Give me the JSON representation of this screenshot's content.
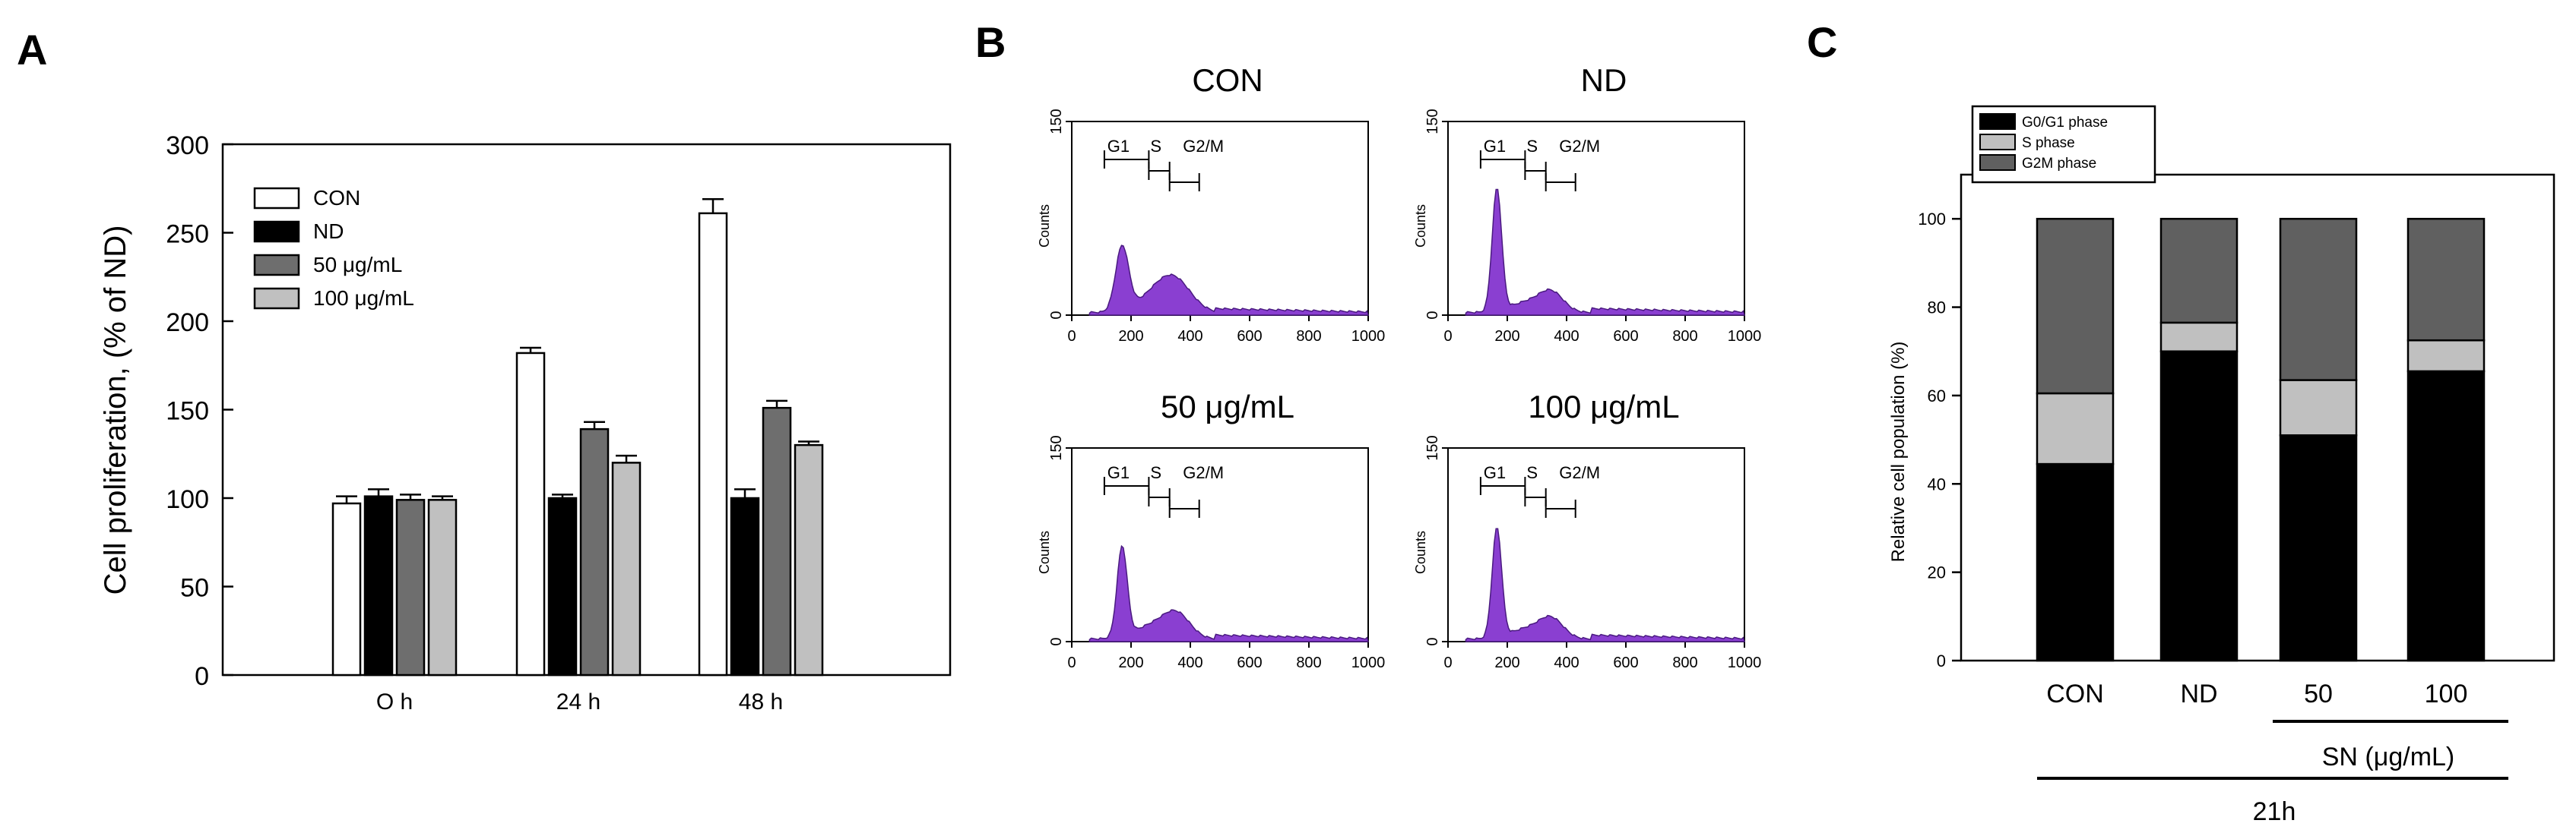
{
  "panel_letters": {
    "a": "A",
    "b": "B",
    "c": "C"
  },
  "chart_data": [
    {
      "id": "A",
      "type": "bar",
      "title": "",
      "xlabel": "",
      "ylabel": "Cell proliferation, (% of ND)",
      "ylim": [
        0,
        300
      ],
      "yticks": [
        0,
        50,
        100,
        150,
        200,
        250,
        300
      ],
      "categories": [
        "O h",
        "24 h",
        "48 h"
      ],
      "legend_position": "top-left",
      "series": [
        {
          "name": "CON",
          "color": "#ffffff",
          "values": [
            97,
            182,
            261
          ],
          "errors": [
            4,
            3,
            8
          ]
        },
        {
          "name": "ND",
          "color": "#000000",
          "values": [
            101,
            100,
            100
          ],
          "errors": [
            4,
            2,
            5
          ]
        },
        {
          "name": "50 μg/mL",
          "color": "#6e6e6e",
          "values": [
            99,
            139,
            151
          ],
          "errors": [
            3,
            4,
            4
          ]
        },
        {
          "name": "100 μg/mL",
          "color": "#c0c0c0",
          "values": [
            99,
            120,
            130
          ],
          "errors": [
            2,
            4,
            2
          ]
        }
      ]
    },
    {
      "id": "B",
      "type": "area",
      "xlabel": "",
      "ylabel": "Counts",
      "xlim": [
        0,
        1000
      ],
      "ylim": [
        0,
        150
      ],
      "xticks": [
        0,
        200,
        400,
        600,
        800,
        1000
      ],
      "yticks": [
        0,
        150
      ],
      "fill_color": "#8a3fd1",
      "gate_labels": [
        "G1",
        "S",
        "G2/M"
      ],
      "panels": [
        {
          "title": "CON",
          "peaks": [
            {
              "center": 170,
              "height": 50,
              "width": 22
            },
            {
              "center": 350,
              "height": 22,
              "width": 55
            },
            {
              "center": 280,
              "height": 12,
              "width": 60
            }
          ]
        },
        {
          "title": "ND",
          "peaks": [
            {
              "center": 165,
              "height": 95,
              "width": 16
            },
            {
              "center": 350,
              "height": 14,
              "width": 40
            },
            {
              "center": 270,
              "height": 8,
              "width": 60
            }
          ]
        },
        {
          "title": "50 μg/mL",
          "peaks": [
            {
              "center": 170,
              "height": 70,
              "width": 17
            },
            {
              "center": 355,
              "height": 18,
              "width": 45
            },
            {
              "center": 270,
              "height": 10,
              "width": 60
            }
          ]
        },
        {
          "title": "100 μg/mL",
          "peaks": [
            {
              "center": 165,
              "height": 85,
              "width": 16
            },
            {
              "center": 350,
              "height": 14,
              "width": 40
            },
            {
              "center": 270,
              "height": 8,
              "width": 60
            }
          ]
        }
      ]
    },
    {
      "id": "C",
      "type": "bar",
      "stacked": true,
      "xlabel": "",
      "ylabel": "Relative cell population (%)",
      "ylim": [
        0,
        110
      ],
      "yticks": [
        0,
        20,
        40,
        60,
        80,
        100
      ],
      "categories": [
        "CON",
        "ND",
        "50",
        "100"
      ],
      "legend_position": "top-left",
      "series": [
        {
          "name": "G0/G1 phase",
          "color": "#000000",
          "values": [
            44.5,
            70,
            51,
            65.5
          ]
        },
        {
          "name": "S phase",
          "color": "#c0c0c0",
          "values": [
            16,
            6.5,
            12.5,
            7
          ]
        },
        {
          "name": "G2M phase",
          "color": "#606060",
          "values": [
            39.5,
            23.5,
            36.5,
            27.5
          ]
        }
      ],
      "bracket_labels": {
        "sn": "SN (μg/mL)",
        "time": "21h"
      }
    }
  ]
}
